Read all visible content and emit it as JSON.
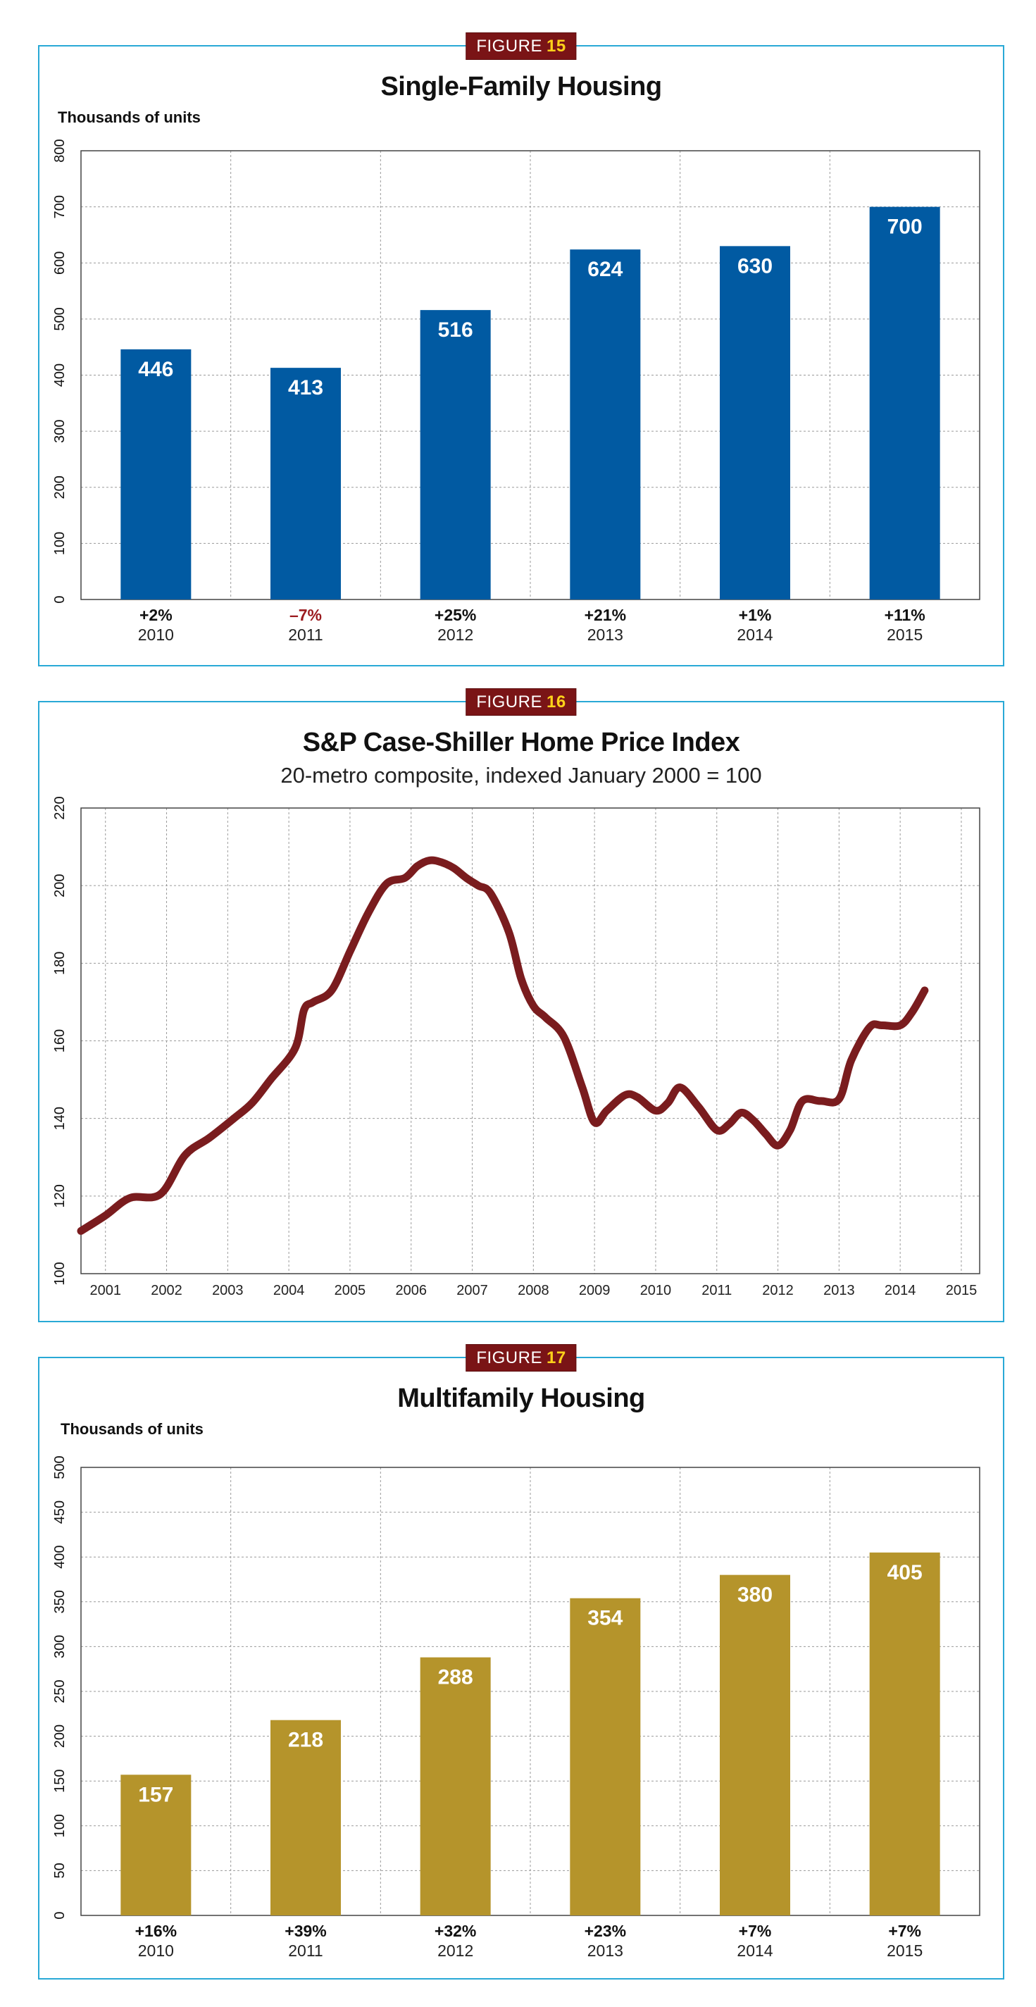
{
  "figures": [
    {
      "badge_label": "FIGURE",
      "badge_number": "15",
      "title": "Single-Family Housing",
      "units_label": "Thousands of units"
    },
    {
      "badge_label": "FIGURE",
      "badge_number": "16",
      "title": "S&P Case-Shiller Home Price Index",
      "subtitle": "20-metro composite, indexed January 2000 = 100"
    },
    {
      "badge_label": "FIGURE",
      "badge_number": "17",
      "title": "Multifamily Housing",
      "units_label": "Thousands of units"
    }
  ],
  "colors": {
    "frame": "#29a9d6",
    "badge_bg": "#7a1416",
    "badge_number": "#ffd21a",
    "single_family_bar": "#015aa2",
    "multifamily_bar": "#b5942b",
    "price_line": "#7a1c1e",
    "negative_change": "#9b1b1f",
    "grid": "#9a9a9a"
  },
  "chart_data": [
    {
      "type": "bar",
      "title": "Single-Family Housing",
      "ylabel": "Thousands of units",
      "categories": [
        "2010",
        "2011",
        "2012",
        "2013",
        "2014",
        "2015"
      ],
      "values": [
        446,
        413,
        516,
        624,
        630,
        700
      ],
      "change_labels": [
        "+2%",
        "–7%",
        "+25%",
        "+21%",
        "+1%",
        "+11%"
      ],
      "ylim": [
        0,
        800
      ],
      "yticks": [
        0,
        100,
        200,
        300,
        400,
        500,
        600,
        700,
        800
      ],
      "grid": true,
      "bar_color": "#015aa2"
    },
    {
      "type": "line",
      "title": "S&P Case-Shiller Home Price Index",
      "subtitle": "20-metro composite, indexed January 2000 = 100",
      "xlim": [
        2000.6,
        2015.3
      ],
      "ylim": [
        100,
        220
      ],
      "xticks": [
        2001,
        2002,
        2003,
        2004,
        2005,
        2006,
        2007,
        2008,
        2009,
        2010,
        2011,
        2012,
        2013,
        2014,
        2015
      ],
      "yticks": [
        100,
        120,
        140,
        160,
        180,
        200,
        220
      ],
      "grid": true,
      "line_color": "#7a1c1e",
      "x": [
        2000.6,
        2001.0,
        2001.4,
        2001.9,
        2002.3,
        2002.7,
        2003.1,
        2003.4,
        2003.7,
        2004.1,
        2004.25,
        2004.4,
        2004.7,
        2005.0,
        2005.3,
        2005.6,
        2005.9,
        2006.1,
        2006.3,
        2006.5,
        2006.7,
        2006.9,
        2007.1,
        2007.3,
        2007.6,
        2007.8,
        2008.0,
        2008.2,
        2008.5,
        2008.8,
        2009.0,
        2009.2,
        2009.5,
        2009.7,
        2010.0,
        2010.2,
        2010.4,
        2010.7,
        2011.0,
        2011.2,
        2011.4,
        2011.6,
        2011.8,
        2012.0,
        2012.2,
        2012.4,
        2012.7,
        2013.0,
        2013.2,
        2013.5,
        2013.7,
        2014.0,
        2014.2,
        2014.4
      ],
      "y": [
        111,
        115,
        119.5,
        120.5,
        130.5,
        135,
        140,
        144,
        150,
        158,
        168,
        170,
        173,
        183,
        193,
        200.5,
        202,
        205,
        206.5,
        206,
        204.5,
        202,
        200,
        198,
        188,
        176,
        169,
        166,
        161,
        148,
        139,
        142,
        146,
        145.5,
        142,
        144,
        148,
        143,
        137,
        138.5,
        141.5,
        139.5,
        136,
        133,
        137,
        144.5,
        144.5,
        145,
        155,
        163.5,
        164,
        164,
        167.5,
        173
      ]
    },
    {
      "type": "bar",
      "title": "Multifamily Housing",
      "ylabel": "Thousands of units",
      "categories": [
        "2010",
        "2011",
        "2012",
        "2013",
        "2014",
        "2015"
      ],
      "values": [
        157,
        218,
        288,
        354,
        380,
        405
      ],
      "change_labels": [
        "+16%",
        "+39%",
        "+32%",
        "+23%",
        "+7%",
        "+7%"
      ],
      "ylim": [
        0,
        500
      ],
      "yticks": [
        0,
        50,
        100,
        150,
        200,
        250,
        300,
        350,
        400,
        450,
        500
      ],
      "grid": true,
      "bar_color": "#b5942b"
    }
  ]
}
